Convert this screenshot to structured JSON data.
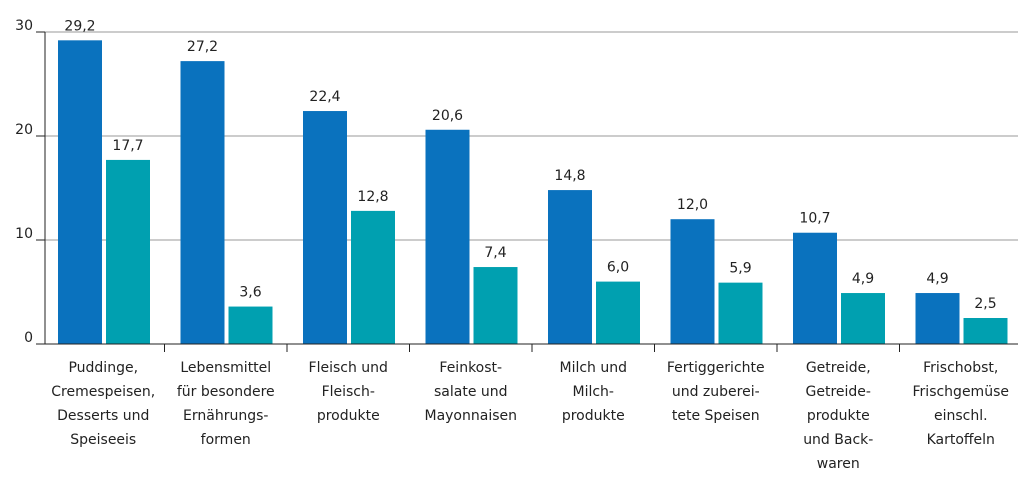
{
  "chart_data": {
    "type": "bar",
    "categories": [
      [
        "Puddinge,",
        "Cremespeisen,",
        "Desserts und",
        "Speiseeis"
      ],
      [
        "Lebensmittel",
        "für besondere",
        "Ernährungs-",
        "formen"
      ],
      [
        "Fleisch und",
        "Fleisch-",
        "produkte"
      ],
      [
        "Feinkost-",
        "salate und",
        "Mayonnaisen"
      ],
      [
        "Milch und",
        "Milch-",
        "produkte"
      ],
      [
        "Fertiggerichte",
        "und zuberei-",
        "tete Speisen"
      ],
      [
        "Getreide,",
        "Getreide-",
        "produkte",
        "und Back-",
        "waren"
      ],
      [
        "Frischobst,",
        "Frischgemüse",
        "einschl.",
        "Kartoffeln"
      ]
    ],
    "series": [
      {
        "color": "#0a72be",
        "values": [
          29.2,
          27.2,
          22.4,
          20.6,
          14.8,
          12.0,
          10.7,
          4.9
        ],
        "value_labels": [
          "29,2",
          "27,2",
          "22,4",
          "20,6",
          "14,8",
          "12,0",
          "10,7",
          "4,9"
        ]
      },
      {
        "color": "#00a0b0",
        "values": [
          17.7,
          3.6,
          12.8,
          7.4,
          6.0,
          5.9,
          4.9,
          2.5
        ],
        "value_labels": [
          "17,7",
          "3,6",
          "12,8",
          "7,4",
          "6,0",
          "5,9",
          "4,9",
          "2,5"
        ]
      }
    ],
    "ylim": [
      0,
      30
    ],
    "yticks": [
      0,
      10,
      20,
      30
    ],
    "grid": true
  }
}
